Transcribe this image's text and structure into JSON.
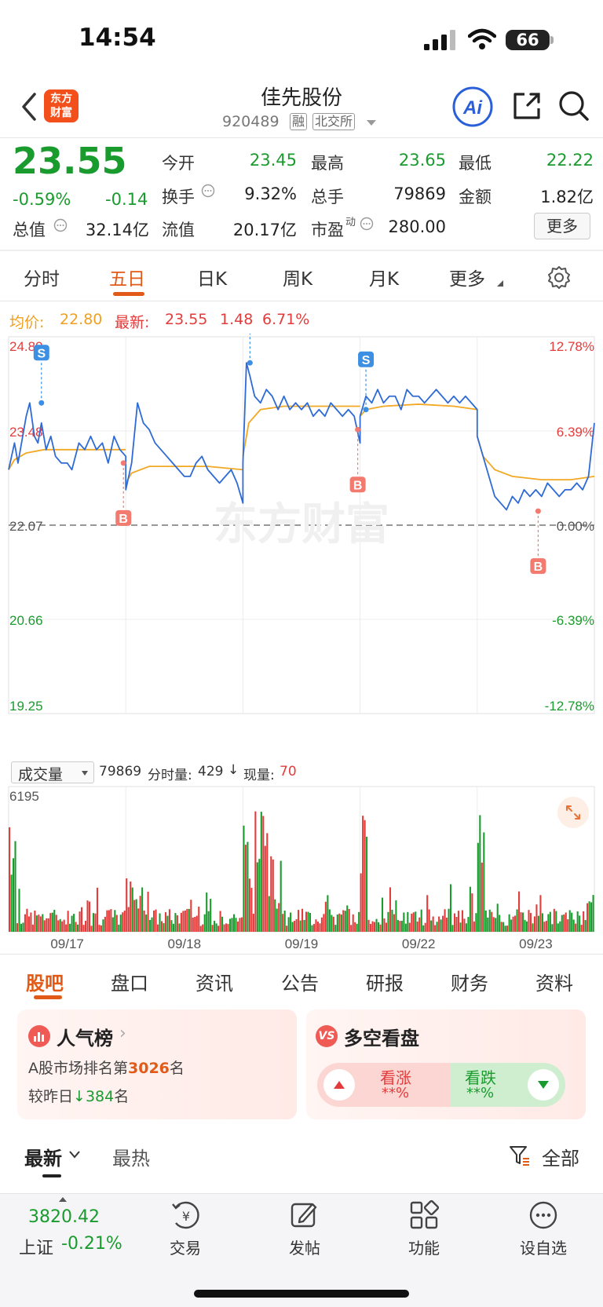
{
  "status_bar": {
    "time": "14:54",
    "battery": "66"
  },
  "header": {
    "logo_line1": "东方",
    "logo_line2": "财富",
    "stock_name": "佳先股份",
    "stock_code": "920489",
    "tag_margin": "融",
    "tag_exchange": "北交所"
  },
  "quote": {
    "price": "23.55",
    "change_pct": "-0.59%",
    "change_abs": "-0.14",
    "open_label": "今开",
    "open": "23.45",
    "high_label": "最高",
    "high": "23.65",
    "low_label": "最低",
    "low": "22.22",
    "turnover_label": "换手",
    "turnover": "9.32%",
    "volume_label": "总手",
    "volume": "79869",
    "amount_label": "金额",
    "amount": "1.82亿",
    "mktcap_label": "总值",
    "mktcap": "32.14亿",
    "float_label": "流值",
    "float": "20.17亿",
    "pe_label": "市盈",
    "pe_sup": "动",
    "pe": "280.00",
    "more": "更多"
  },
  "tabs": [
    "分时",
    "五日",
    "日K",
    "周K",
    "月K",
    "更多"
  ],
  "chart_header": {
    "avg_label": "均价:",
    "avg": "22.80",
    "latest_label": "最新:",
    "latest": "23.55",
    "latest_chg": "1.48",
    "latest_pct": "6.71%"
  },
  "chart_data": [
    {
      "type": "line",
      "x": [
        "09/17",
        "09/18",
        "09/19",
        "09/22",
        "09/23"
      ],
      "series": [],
      "price_axis": [
        "24.89",
        "23.48",
        "22.07",
        "20.66",
        "19.25"
      ],
      "pct_axis": [
        "12.78%",
        "6.39%",
        "0.00%",
        "-6.39%",
        "-12.78%"
      ],
      "ylim": [
        19.25,
        24.89
      ],
      "price_path": [
        [
          0.0,
          22.9
        ],
        [
          0.05,
          23.3
        ],
        [
          0.08,
          23.0
        ],
        [
          0.12,
          23.4
        ],
        [
          0.15,
          23.7
        ],
        [
          0.18,
          23.9
        ],
        [
          0.22,
          23.4
        ],
        [
          0.25,
          23.3
        ],
        [
          0.28,
          23.6
        ],
        [
          0.32,
          23.2
        ],
        [
          0.36,
          23.4
        ],
        [
          0.4,
          23.1
        ],
        [
          0.45,
          23.0
        ],
        [
          0.5,
          23.0
        ],
        [
          0.54,
          22.9
        ],
        [
          0.6,
          23.3
        ],
        [
          0.65,
          23.2
        ],
        [
          0.7,
          23.4
        ],
        [
          0.75,
          23.2
        ],
        [
          0.8,
          23.3
        ],
        [
          0.85,
          23.0
        ],
        [
          0.9,
          23.4
        ],
        [
          0.95,
          23.2
        ],
        [
          1.0,
          23.1
        ],
        [
          1.0,
          22.6
        ],
        [
          1.05,
          23.0
        ],
        [
          1.1,
          23.9
        ],
        [
          1.15,
          23.6
        ],
        [
          1.2,
          23.5
        ],
        [
          1.25,
          23.3
        ],
        [
          1.3,
          23.2
        ],
        [
          1.35,
          23.1
        ],
        [
          1.4,
          23.0
        ],
        [
          1.45,
          22.9
        ],
        [
          1.5,
          22.8
        ],
        [
          1.55,
          22.8
        ],
        [
          1.6,
          23.0
        ],
        [
          1.65,
          23.1
        ],
        [
          1.7,
          22.9
        ],
        [
          1.75,
          22.8
        ],
        [
          1.8,
          22.7
        ],
        [
          1.85,
          22.8
        ],
        [
          1.9,
          22.9
        ],
        [
          1.95,
          22.7
        ],
        [
          2.0,
          22.4
        ],
        [
          2.0,
          23.0
        ],
        [
          2.03,
          24.5
        ],
        [
          2.06,
          24.3
        ],
        [
          2.1,
          24.0
        ],
        [
          2.15,
          23.9
        ],
        [
          2.2,
          24.1
        ],
        [
          2.25,
          24.0
        ],
        [
          2.3,
          23.8
        ],
        [
          2.35,
          24.0
        ],
        [
          2.4,
          23.8
        ],
        [
          2.45,
          23.9
        ],
        [
          2.5,
          23.8
        ],
        [
          2.55,
          23.9
        ],
        [
          2.6,
          23.7
        ],
        [
          2.65,
          23.8
        ],
        [
          2.7,
          23.7
        ],
        [
          2.75,
          23.9
        ],
        [
          2.8,
          23.8
        ],
        [
          2.85,
          23.7
        ],
        [
          2.9,
          23.8
        ],
        [
          2.95,
          23.7
        ],
        [
          3.0,
          23.3
        ],
        [
          3.0,
          23.7
        ],
        [
          3.05,
          24.0
        ],
        [
          3.1,
          23.9
        ],
        [
          3.15,
          24.1
        ],
        [
          3.2,
          23.9
        ],
        [
          3.25,
          24.0
        ],
        [
          3.3,
          24.0
        ],
        [
          3.35,
          23.8
        ],
        [
          3.4,
          24.1
        ],
        [
          3.45,
          24.0
        ],
        [
          3.5,
          24.0
        ],
        [
          3.55,
          23.9
        ],
        [
          3.6,
          24.0
        ],
        [
          3.65,
          24.1
        ],
        [
          3.7,
          24.0
        ],
        [
          3.75,
          23.9
        ],
        [
          3.8,
          24.0
        ],
        [
          3.85,
          23.9
        ],
        [
          3.9,
          24.0
        ],
        [
          3.95,
          23.9
        ],
        [
          4.0,
          23.8
        ],
        [
          4.0,
          23.4
        ],
        [
          4.05,
          23.1
        ],
        [
          4.1,
          22.8
        ],
        [
          4.15,
          22.5
        ],
        [
          4.2,
          22.4
        ],
        [
          4.25,
          22.3
        ],
        [
          4.3,
          22.5
        ],
        [
          4.35,
          22.4
        ],
        [
          4.4,
          22.6
        ],
        [
          4.45,
          22.5
        ],
        [
          4.5,
          22.6
        ],
        [
          4.55,
          22.5
        ],
        [
          4.6,
          22.7
        ],
        [
          4.65,
          22.6
        ],
        [
          4.7,
          22.5
        ],
        [
          4.75,
          22.6
        ],
        [
          4.8,
          22.6
        ],
        [
          4.85,
          22.7
        ],
        [
          4.9,
          22.6
        ],
        [
          4.95,
          22.8
        ],
        [
          5.0,
          23.6
        ]
      ],
      "avg_path": [
        [
          0.0,
          22.9
        ],
        [
          0.05,
          23.05
        ],
        [
          0.15,
          23.15
        ],
        [
          0.3,
          23.2
        ],
        [
          0.5,
          23.2
        ],
        [
          0.8,
          23.2
        ],
        [
          1.0,
          23.2
        ],
        [
          1.0,
          22.7
        ],
        [
          1.05,
          22.85
        ],
        [
          1.2,
          22.95
        ],
        [
          1.4,
          22.95
        ],
        [
          1.7,
          22.95
        ],
        [
          2.0,
          22.9
        ],
        [
          2.0,
          23.1
        ],
        [
          2.05,
          23.6
        ],
        [
          2.15,
          23.8
        ],
        [
          2.35,
          23.85
        ],
        [
          2.6,
          23.85
        ],
        [
          3.0,
          23.85
        ],
        [
          3.0,
          23.7
        ],
        [
          3.05,
          23.8
        ],
        [
          3.2,
          23.85
        ],
        [
          3.5,
          23.88
        ],
        [
          3.8,
          23.85
        ],
        [
          4.0,
          23.8
        ],
        [
          4.0,
          23.4
        ],
        [
          4.05,
          23.1
        ],
        [
          4.15,
          22.9
        ],
        [
          4.3,
          22.8
        ],
        [
          4.55,
          22.75
        ],
        [
          4.8,
          22.75
        ],
        [
          5.0,
          22.8
        ]
      ],
      "markers": [
        {
          "label": "S",
          "x": 0.28,
          "price": 23.9
        },
        {
          "label": "B",
          "x": 0.98,
          "price": 23.0
        },
        {
          "label": "S",
          "x": 2.06,
          "price": 24.5
        },
        {
          "label": "B",
          "x": 2.98,
          "price": 23.5
        },
        {
          "label": "S",
          "x": 3.05,
          "price": 23.8
        },
        {
          "label": "B",
          "x": 4.52,
          "price": 22.28
        }
      ],
      "base_price": 22.07
    },
    {
      "type": "bar",
      "title": "成交量",
      "total": "79869",
      "minute_volume_label": "分时量:",
      "minute_volume": "429",
      "current_volume_label": "现量:",
      "current_volume": "70",
      "ymax": "6195"
    }
  ],
  "sub_tabs": [
    "股吧",
    "盘口",
    "资讯",
    "公告",
    "研报",
    "财务",
    "资料"
  ],
  "popularity": {
    "title": "人气榜",
    "rank_prefix": "A股市场排名第",
    "rank": "3026",
    "rank_suffix": "名",
    "change_prefix": "较昨日",
    "change": "384",
    "change_suffix": "名"
  },
  "sentiment": {
    "title": "多空看盘",
    "bull_label": "看涨",
    "bull_value": "**%",
    "bear_label": "看跌",
    "bear_value": "**%"
  },
  "feed_tabs": {
    "latest": "最新",
    "hot": "最热",
    "filter_all": "全部"
  },
  "bottom_nav": {
    "index_value": "3820.42",
    "index_name": "上证",
    "index_change": "-0.21%",
    "items": [
      "交易",
      "发帖",
      "功能",
      "设自选"
    ]
  }
}
